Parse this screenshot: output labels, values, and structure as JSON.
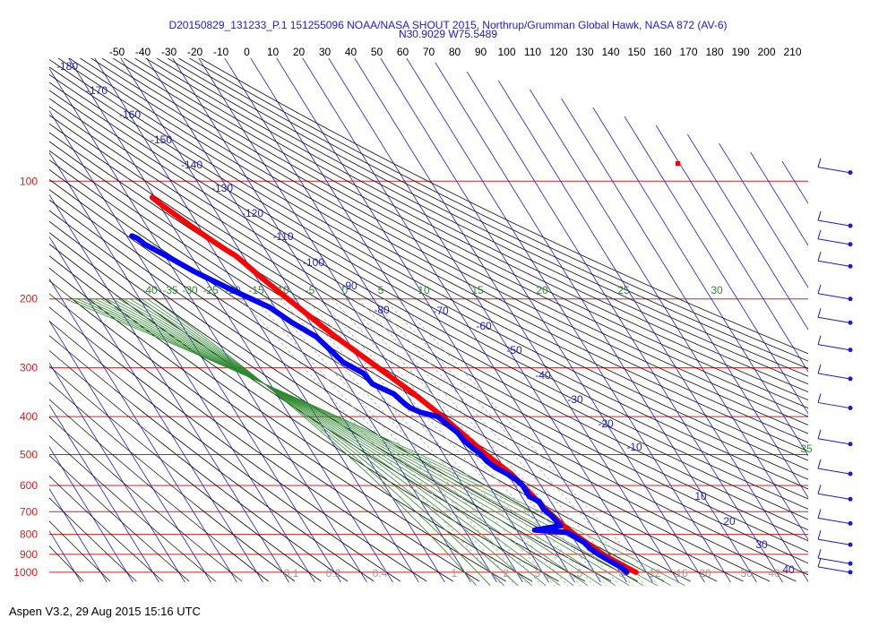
{
  "chart_data": {
    "type": "line",
    "diagram": "skew-T log-P",
    "title": "D20150829_131233_P.1 151255096 NOAA/NASA SHOUT 2015, Northrup/Grumman Global Hawk, NASA 872 (AV-6)",
    "subtitle": "N30.9029 W75.5489",
    "footer": "Aspen V3.2, 29 Aug 2015  15:16 UTC",
    "temperature_ticks": [
      -50,
      -40,
      -30,
      -20,
      -10,
      0,
      10,
      20,
      30,
      40,
      50,
      60,
      70,
      80,
      90,
      100,
      110,
      120,
      130,
      140,
      150,
      160,
      170,
      180,
      190,
      200,
      210
    ],
    "pressure_levels": [
      100,
      200,
      300,
      400,
      500,
      600,
      700,
      800,
      900,
      1000
    ],
    "potential_temp_labels": [
      -180,
      -170,
      -160,
      -150,
      -140,
      -130,
      -120,
      -110,
      -100,
      -90,
      -80,
      -70,
      -60,
      -50,
      -40,
      -30,
      -20,
      -10,
      10,
      20,
      30,
      40
    ],
    "moist_adiabat_labels": [
      "-40",
      "-35",
      "-30",
      "-25",
      "-20",
      "-15",
      "-10",
      "-5",
      "0",
      "5",
      "10",
      "15",
      "20",
      "25",
      "30",
      "35"
    ],
    "mixing_ratio_labels": [
      "0.1",
      "0.2",
      "0.4",
      "1",
      "2",
      "3",
      "5",
      "8",
      "12",
      "16",
      "20",
      "30",
      "40"
    ],
    "series": [
      {
        "name": "Temperature",
        "color": "#ff0000",
        "points": [
          [
            1000,
            26
          ],
          [
            980,
            24.2
          ],
          [
            950,
            21.8
          ],
          [
            925,
            19.6
          ],
          [
            900,
            17.6
          ],
          [
            850,
            14.6
          ],
          [
            800,
            11.4
          ],
          [
            760,
            9.2
          ],
          [
            700,
            6.6
          ],
          [
            650,
            4.8
          ],
          [
            600,
            3.0
          ],
          [
            560,
            1.4
          ],
          [
            520,
            -2.0
          ],
          [
            500,
            -3.6
          ],
          [
            450,
            -7.2
          ],
          [
            400,
            -11.4
          ],
          [
            350,
            -17.0
          ],
          [
            300,
            -24.6
          ],
          [
            250,
            -33.6
          ],
          [
            200,
            -43.0
          ],
          [
            175,
            -48.4
          ],
          [
            160,
            -51.6
          ],
          [
            155,
            -52.8
          ],
          [
            150,
            -55.0
          ],
          [
            140,
            -59.0
          ],
          [
            130,
            -63.0
          ],
          [
            120,
            -67.0
          ],
          [
            115,
            -69.2
          ],
          [
            110,
            -71.0
          ]
        ]
      },
      {
        "name": "Dewpoint",
        "color": "#0000ff",
        "points": [
          [
            1000,
            22.4
          ],
          [
            970,
            21.4
          ],
          [
            940,
            19.0
          ],
          [
            900,
            15.8
          ],
          [
            870,
            14.0
          ],
          [
            840,
            13.2
          ],
          [
            820,
            11.6
          ],
          [
            800,
            10.0
          ],
          [
            790,
            9.0
          ],
          [
            780,
            -3.0
          ],
          [
            760,
            8.0
          ],
          [
            720,
            7.0
          ],
          [
            690,
            5.4
          ],
          [
            660,
            5.6
          ],
          [
            640,
            3.0
          ],
          [
            600,
            3.0
          ],
          [
            580,
            1.8
          ],
          [
            560,
            -0.2
          ],
          [
            540,
            -3.2
          ],
          [
            520,
            -5.0
          ],
          [
            500,
            -5.6
          ],
          [
            480,
            -7.4
          ],
          [
            460,
            -9.0
          ],
          [
            440,
            -9.4
          ],
          [
            420,
            -11.4
          ],
          [
            400,
            -13.2
          ],
          [
            390,
            -18.8
          ],
          [
            380,
            -21.8
          ],
          [
            370,
            -23.0
          ],
          [
            350,
            -24.8
          ],
          [
            330,
            -30.6
          ],
          [
            310,
            -31.6
          ],
          [
            290,
            -36.8
          ],
          [
            270,
            -38.8
          ],
          [
            250,
            -41.0
          ],
          [
            230,
            -47.0
          ],
          [
            210,
            -52.0
          ],
          [
            190,
            -62.2
          ],
          [
            170,
            -72.6
          ],
          [
            155,
            -79.6
          ],
          [
            145,
            -85.0
          ],
          [
            140,
            -86.4
          ],
          [
            138,
            -88.0
          ]
        ]
      }
    ],
    "wind_barbs_at_pressure_hpa": [
      95,
      130,
      145,
      165,
      200,
      230,
      270,
      320,
      380,
      470,
      560,
      650,
      750,
      850,
      950,
      1000
    ],
    "x_axis": "temperature (deg C)",
    "y_axis": "pressure (hPa), log scale",
    "ylim": [
      1000,
      80
    ],
    "grid": true
  }
}
